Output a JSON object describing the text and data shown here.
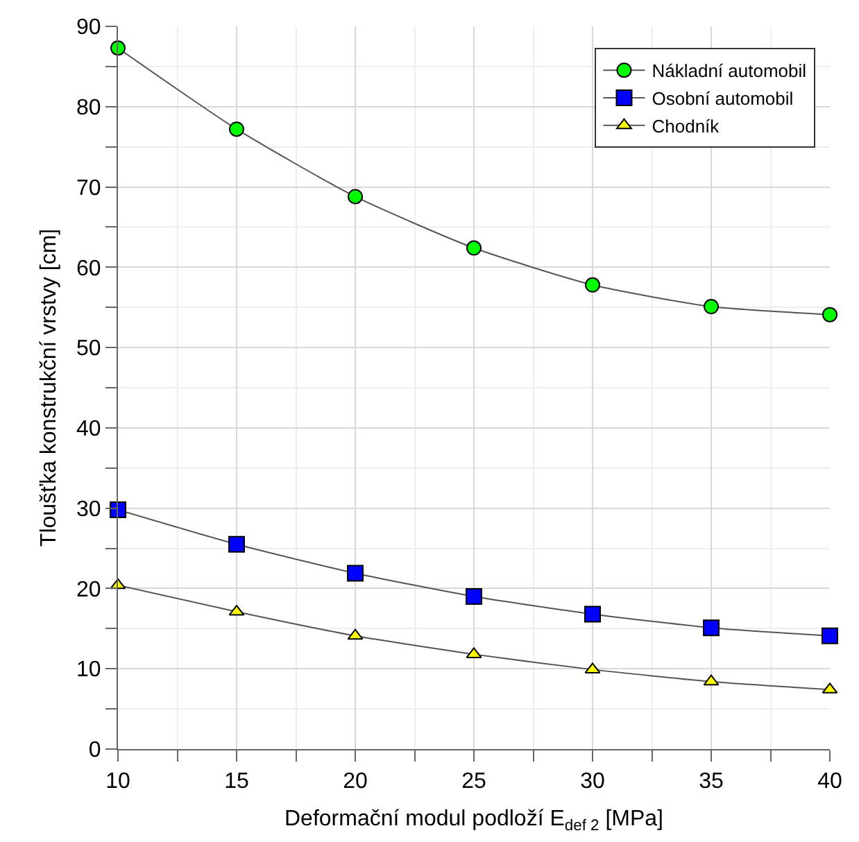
{
  "chart_data": {
    "type": "line",
    "xlabel": "Deformační modul podloží E$_{def 2}$ [MPa]",
    "ylabel": "Tloušťka konstrukční vrstvy [cm]",
    "x": [
      10,
      15,
      20,
      25,
      30,
      35,
      40
    ],
    "series": [
      {
        "name": "Nákladní automobil",
        "color": "#00ff00",
        "marker": "circle",
        "values": [
          87.3,
          77.2,
          68.8,
          62.4,
          57.8,
          55.1,
          54.1
        ]
      },
      {
        "name": "Osobní automobil",
        "color": "#0000ff",
        "marker": "square",
        "values": [
          29.8,
          25.5,
          21.9,
          19.0,
          16.8,
          15.1,
          14.1
        ]
      },
      {
        "name": "Chodník",
        "color": "#ffff00",
        "marker": "triangle",
        "values": [
          20.4,
          17.1,
          14.1,
          11.8,
          9.9,
          8.4,
          7.4
        ]
      }
    ],
    "xlim": [
      10,
      40
    ],
    "xticks": [
      10,
      15,
      20,
      25,
      30,
      35,
      40
    ],
    "ylim": [
      0,
      90
    ],
    "yticks": [
      0,
      10,
      20,
      30,
      40,
      50,
      60,
      70,
      80,
      90
    ],
    "grid": true,
    "legend": "top right",
    "line_style": "solid"
  }
}
